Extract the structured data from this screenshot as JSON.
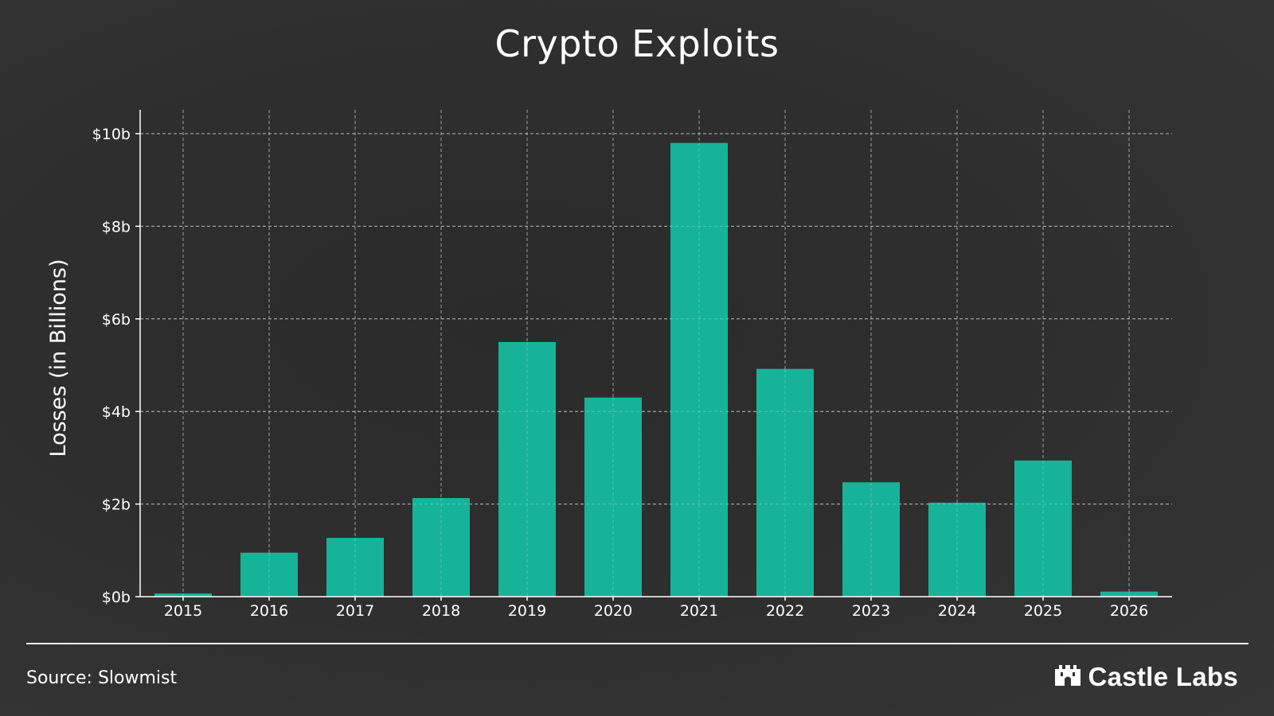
{
  "chart_data": {
    "type": "bar",
    "title": "Crypto Exploits",
    "xlabel": "",
    "ylabel": "Losses (in Billions)",
    "categories": [
      "2015",
      "2016",
      "2017",
      "2018",
      "2019",
      "2020",
      "2021",
      "2022",
      "2023",
      "2024",
      "2025",
      "2026"
    ],
    "values": [
      0.07,
      0.95,
      1.27,
      2.13,
      5.5,
      4.3,
      9.8,
      4.92,
      2.47,
      2.03,
      2.94,
      0.11
    ],
    "ylim": [
      0,
      10.5
    ],
    "yticks": [
      0,
      2,
      4,
      6,
      8,
      10
    ],
    "ytick_labels": [
      "$0b",
      "$2b",
      "$4b",
      "$6b",
      "$8b",
      "$10b"
    ],
    "grid": true,
    "bar_color": "#17b399"
  },
  "footer": {
    "source": "Source: Slowmist",
    "brand": "Castle Labs",
    "brand_icon": "castle-icon"
  },
  "colors": {
    "background": "#2f2f2f",
    "bar": "#17b399",
    "grid": "#bdbdbd",
    "text": "#ffffff"
  }
}
